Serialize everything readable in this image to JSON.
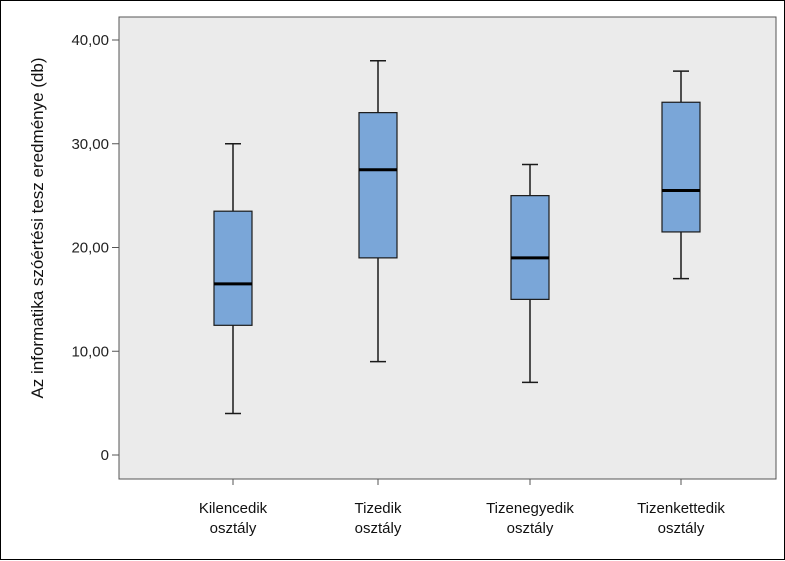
{
  "chart_data": {
    "type": "boxplot",
    "ylabel": "Az informatika szóértési tesz eredménye (db)",
    "xlabel": "",
    "ylim": [
      -2,
      42
    ],
    "yticks": [
      0,
      10,
      20,
      30,
      40
    ],
    "ytick_labels": [
      "0",
      "10,00",
      "20,00",
      "30,00",
      "40,00"
    ],
    "grid": false,
    "categories": [
      [
        "Kilencedik",
        "osztály"
      ],
      [
        "Tizedik",
        "osztály"
      ],
      [
        "Tizenegyedik",
        "osztály"
      ],
      [
        "Tizenkettedik",
        "osztály"
      ]
    ],
    "boxes": [
      {
        "min": 4,
        "q1": 12.5,
        "median": 16.5,
        "q3": 23.5,
        "max": 30
      },
      {
        "min": 9,
        "q1": 19,
        "median": 27.5,
        "q3": 33,
        "max": 38
      },
      {
        "min": 7,
        "q1": 15,
        "median": 19,
        "q3": 25,
        "max": 28
      },
      {
        "min": 17,
        "q1": 21.5,
        "median": 25.5,
        "q3": 34,
        "max": 37
      }
    ],
    "colors": {
      "plot_background": "#ebebeb",
      "box_fill": "#7aa6d8",
      "box_stroke": "#1a1a1a",
      "median": "#000000",
      "axis": "#555555"
    }
  }
}
